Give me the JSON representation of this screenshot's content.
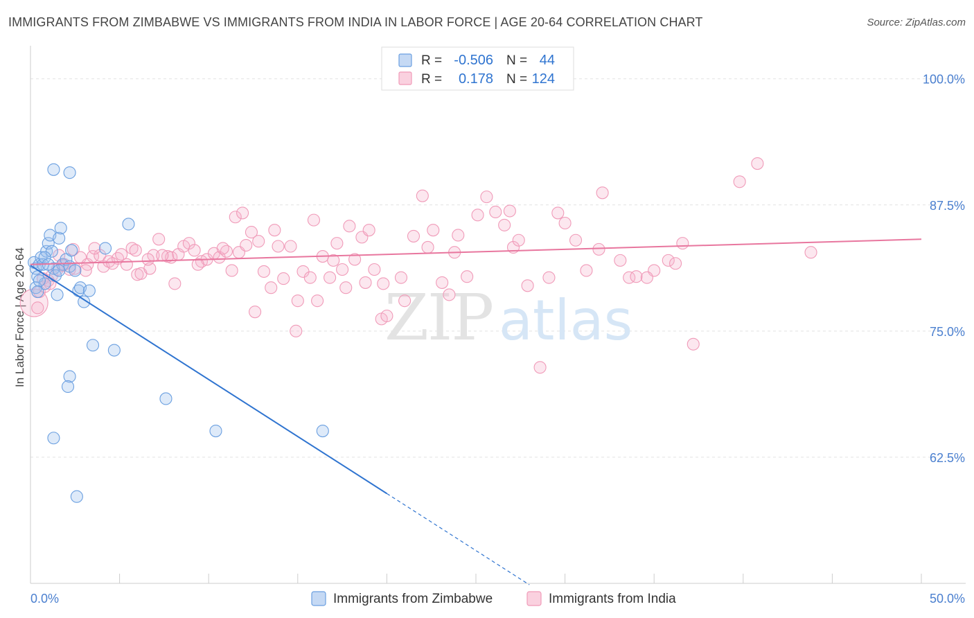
{
  "title": "IMMIGRANTS FROM ZIMBABWE VS IMMIGRANTS FROM INDIA IN LABOR FORCE | AGE 20-64 CORRELATION CHART",
  "source": "Source: ZipAtlas.com",
  "watermark": {
    "zip": "ZIP",
    "atlas": "atlas"
  },
  "legend_box": {
    "rows": [
      {
        "r_label": "R =",
        "r_value": "-0.506",
        "n_label": "N =",
        "n_value": "44"
      },
      {
        "r_label": "R =",
        "r_value": "0.178",
        "n_label": "N =",
        "n_value": "124"
      }
    ]
  },
  "chart_data": {
    "type": "scatter",
    "title": "IMMIGRANTS FROM ZIMBABWE VS IMMIGRANTS FROM INDIA IN LABOR FORCE | AGE 20-64 CORRELATION CHART",
    "xlabel": "",
    "ylabel": "In Labor Force | Age 20-64",
    "xlim": [
      0,
      50
    ],
    "ylim": [
      50,
      103
    ],
    "x_tick_labels": [
      {
        "value": 0,
        "label": "0.0%"
      },
      {
        "value": 50,
        "label": "50.0%"
      }
    ],
    "y_tick_labels": [
      {
        "value": 100,
        "label": "100.0%"
      },
      {
        "value": 87.5,
        "label": "87.5%"
      },
      {
        "value": 75,
        "label": "75.0%"
      },
      {
        "value": 62.5,
        "label": "62.5%"
      }
    ],
    "grid": true,
    "legend_position": "bottom",
    "series": [
      {
        "name": "Immigrants from Zimbabwe",
        "color": "#6a9fe0",
        "trend_color": "#2f74d0",
        "trend": {
          "x0": 0,
          "y0": 81.5,
          "x1": 20,
          "y1": 58.9,
          "dash_to_x": 28
        },
        "points": [
          [
            0.2,
            81.8
          ],
          [
            0.3,
            81.2
          ],
          [
            0.4,
            80.4
          ],
          [
            0.5,
            81.6
          ],
          [
            0.6,
            82.3
          ],
          [
            0.7,
            81.6
          ],
          [
            0.8,
            79.7
          ],
          [
            0.9,
            82.9
          ],
          [
            1.0,
            83.7
          ],
          [
            1.1,
            84.5
          ],
          [
            1.2,
            82.9
          ],
          [
            1.3,
            81.2
          ],
          [
            1.4,
            80.5
          ],
          [
            1.5,
            78.6
          ],
          [
            1.6,
            84.2
          ],
          [
            1.7,
            85.2
          ],
          [
            0.3,
            79.3
          ],
          [
            0.5,
            80.0
          ],
          [
            0.8,
            82.3
          ],
          [
            1.0,
            81.6
          ],
          [
            1.8,
            81.6
          ],
          [
            2.0,
            82.1
          ],
          [
            2.2,
            81.4
          ],
          [
            2.5,
            81.0
          ],
          [
            2.7,
            79.0
          ],
          [
            2.8,
            79.3
          ],
          [
            3.0,
            77.9
          ],
          [
            3.3,
            79.0
          ],
          [
            1.3,
            91.0
          ],
          [
            2.2,
            70.5
          ],
          [
            2.1,
            69.5
          ],
          [
            2.2,
            90.7
          ],
          [
            2.3,
            83.0
          ],
          [
            4.2,
            83.2
          ],
          [
            5.5,
            85.6
          ],
          [
            3.5,
            73.6
          ],
          [
            4.7,
            73.1
          ],
          [
            1.3,
            64.4
          ],
          [
            7.6,
            68.3
          ],
          [
            10.4,
            65.1
          ],
          [
            16.4,
            65.1
          ],
          [
            2.6,
            58.6
          ],
          [
            0.4,
            78.9
          ],
          [
            1.6,
            81.0
          ]
        ]
      },
      {
        "name": "Immigrants from India",
        "color": "#f09ab8",
        "trend_color": "#e8769e",
        "trend": {
          "x0": 0,
          "y0": 81.6,
          "x1": 50,
          "y1": 84.1
        },
        "points": [
          [
            0.2,
            77.8
          ],
          [
            0.5,
            78.9
          ],
          [
            0.8,
            79.4
          ],
          [
            1.0,
            80.0
          ],
          [
            1.2,
            80.5
          ],
          [
            1.5,
            81.1
          ],
          [
            1.8,
            81.5
          ],
          [
            2.2,
            81.1
          ],
          [
            2.5,
            81.2
          ],
          [
            2.8,
            82.3
          ],
          [
            3.2,
            81.6
          ],
          [
            3.5,
            82.4
          ],
          [
            3.9,
            82.5
          ],
          [
            4.1,
            81.4
          ],
          [
            4.4,
            81.9
          ],
          [
            4.9,
            82.2
          ],
          [
            5.1,
            82.6
          ],
          [
            5.4,
            81.6
          ],
          [
            5.7,
            83.2
          ],
          [
            6.0,
            80.6
          ],
          [
            6.2,
            80.7
          ],
          [
            6.7,
            81.2
          ],
          [
            6.9,
            82.5
          ],
          [
            7.2,
            84.1
          ],
          [
            7.7,
            82.4
          ],
          [
            7.9,
            82.3
          ],
          [
            8.3,
            82.6
          ],
          [
            8.6,
            83.4
          ],
          [
            8.9,
            83.7
          ],
          [
            9.2,
            83.0
          ],
          [
            9.6,
            81.9
          ],
          [
            9.9,
            82.1
          ],
          [
            10.3,
            82.7
          ],
          [
            10.6,
            82.3
          ],
          [
            11.0,
            82.9
          ],
          [
            11.3,
            81.0
          ],
          [
            11.7,
            82.8
          ],
          [
            12.1,
            83.5
          ],
          [
            12.4,
            84.8
          ],
          [
            12.8,
            83.9
          ],
          [
            13.1,
            80.9
          ],
          [
            13.5,
            79.3
          ],
          [
            13.9,
            83.4
          ],
          [
            14.2,
            80.2
          ],
          [
            14.6,
            83.4
          ],
          [
            15.0,
            78.0
          ],
          [
            15.3,
            80.9
          ],
          [
            15.7,
            80.3
          ],
          [
            16.1,
            78.0
          ],
          [
            16.4,
            82.4
          ],
          [
            16.8,
            80.3
          ],
          [
            17.2,
            83.7
          ],
          [
            17.5,
            81.1
          ],
          [
            17.9,
            85.4
          ],
          [
            18.2,
            82.1
          ],
          [
            18.6,
            84.3
          ],
          [
            19.0,
            85.0
          ],
          [
            19.3,
            81.1
          ],
          [
            19.7,
            76.2
          ],
          [
            20.0,
            76.5
          ],
          [
            21.0,
            78.0
          ],
          [
            21.5,
            84.4
          ],
          [
            22.0,
            88.4
          ],
          [
            22.6,
            85.0
          ],
          [
            23.1,
            79.8
          ],
          [
            23.5,
            78.6
          ],
          [
            24.0,
            84.5
          ],
          [
            24.5,
            80.4
          ],
          [
            25.1,
            86.5
          ],
          [
            25.6,
            88.3
          ],
          [
            26.1,
            86.8
          ],
          [
            26.6,
            85.5
          ],
          [
            27.1,
            83.3
          ],
          [
            27.4,
            84.0
          ],
          [
            27.9,
            79.5
          ],
          [
            28.6,
            71.4
          ],
          [
            29.1,
            80.3
          ],
          [
            29.6,
            86.7
          ],
          [
            30.0,
            85.7
          ],
          [
            30.6,
            84.0
          ],
          [
            31.2,
            81.0
          ],
          [
            32.1,
            88.7
          ],
          [
            33.1,
            82.0
          ],
          [
            33.6,
            80.3
          ],
          [
            34.0,
            80.4
          ],
          [
            35.0,
            81.0
          ],
          [
            35.8,
            82.0
          ],
          [
            36.2,
            81.7
          ],
          [
            36.6,
            83.7
          ],
          [
            37.2,
            73.7
          ],
          [
            39.8,
            89.8
          ],
          [
            40.8,
            91.6
          ],
          [
            43.8,
            82.8
          ],
          [
            0.4,
            77.3
          ],
          [
            0.7,
            80.2
          ],
          [
            1.1,
            79.7
          ],
          [
            1.6,
            82.5
          ],
          [
            1.9,
            81.6
          ],
          [
            2.4,
            83.1
          ],
          [
            3.1,
            81.0
          ],
          [
            3.6,
            83.2
          ],
          [
            4.6,
            81.7
          ],
          [
            5.9,
            83.0
          ],
          [
            6.6,
            82.1
          ],
          [
            7.4,
            82.5
          ],
          [
            8.1,
            79.7
          ],
          [
            9.4,
            81.6
          ],
          [
            10.8,
            83.2
          ],
          [
            11.5,
            86.3
          ],
          [
            11.9,
            86.7
          ],
          [
            12.6,
            76.9
          ],
          [
            13.7,
            85.0
          ],
          [
            14.9,
            75.0
          ],
          [
            15.9,
            86.0
          ],
          [
            17.0,
            82.0
          ],
          [
            17.7,
            79.3
          ],
          [
            18.8,
            79.8
          ],
          [
            19.8,
            79.7
          ],
          [
            20.8,
            80.3
          ],
          [
            22.3,
            83.3
          ],
          [
            23.8,
            82.8
          ],
          [
            26.9,
            86.9
          ],
          [
            31.9,
            83.1
          ],
          [
            34.6,
            80.3
          ]
        ]
      }
    ]
  },
  "bottom_legend": [
    {
      "label": "Immigrants from Zimbabwe",
      "color": "#6a9fe0"
    },
    {
      "label": "Immigrants from India",
      "color": "#f09ab8"
    }
  ]
}
